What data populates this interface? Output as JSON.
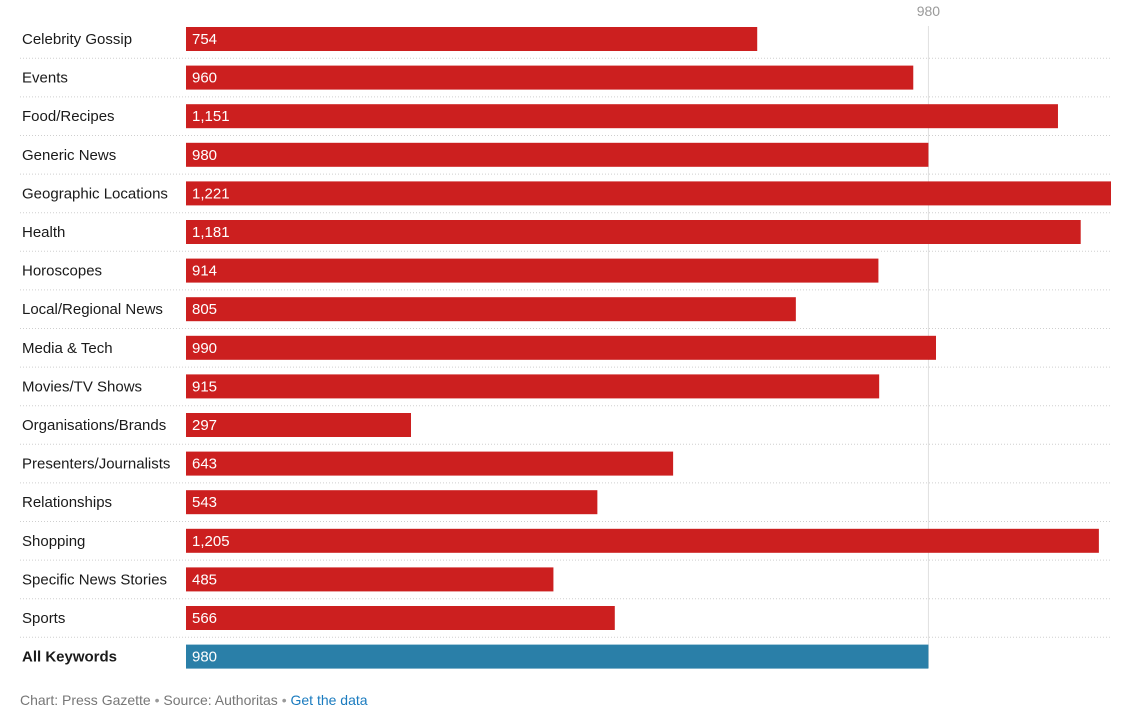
{
  "chart_data": {
    "type": "bar",
    "orientation": "horizontal",
    "categories": [
      "Celebrity Gossip",
      "Events",
      "Food/Recipes",
      "Generic News",
      "Geographic Locations",
      "Health",
      "Horoscopes",
      "Local/Regional News",
      "Media & Tech",
      "Movies/TV Shows",
      "Organisations/Brands",
      "Presenters/Journalists",
      "Relationships",
      "Shopping",
      "Specific News Stories",
      "Sports",
      "All Keywords"
    ],
    "values": [
      754,
      960,
      1151,
      980,
      1221,
      1181,
      914,
      805,
      990,
      915,
      297,
      643,
      543,
      1205,
      485,
      566,
      980
    ],
    "value_labels": [
      "754",
      "960",
      "1,151",
      "980",
      "1,221",
      "1,181",
      "914",
      "805",
      "990",
      "915",
      "297",
      "643",
      "543",
      "1,205",
      "485",
      "566",
      "980"
    ],
    "highlight_index": 16,
    "reference_line": {
      "value": 980,
      "label": "980"
    },
    "xlim": [
      0,
      1221
    ],
    "colors": {
      "bar": "#cc1f1f",
      "highlight": "#2a7fa8",
      "reference": "#e0e0e0",
      "separator": "#cfcfcf"
    }
  },
  "footer": {
    "chart_credit": "Chart: Press Gazette",
    "separator": "•",
    "source": "Source: Authoritas",
    "link_text": "Get the data"
  }
}
